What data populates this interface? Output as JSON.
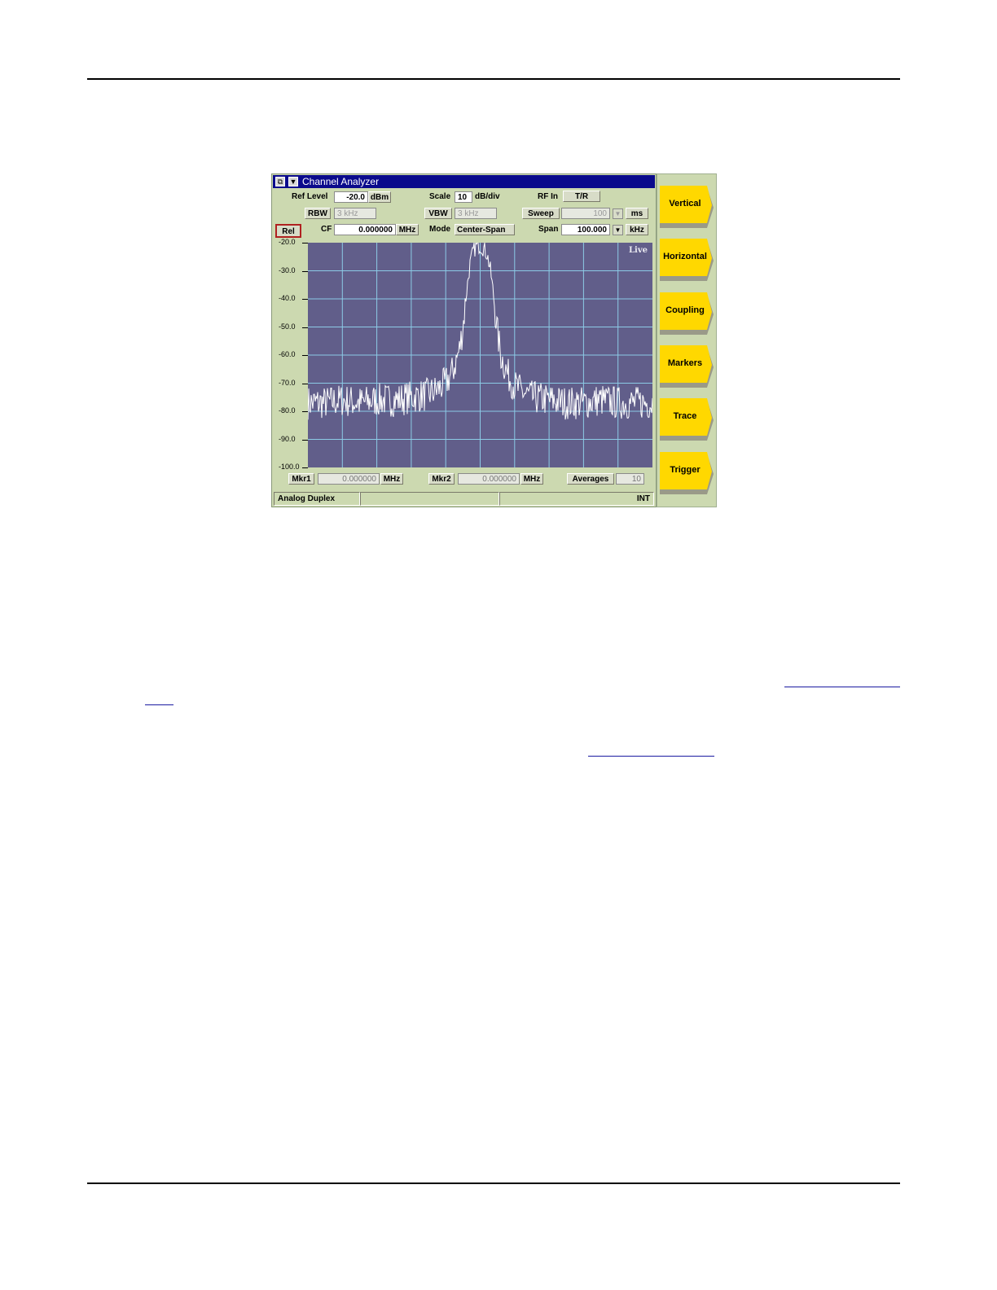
{
  "window": {
    "title": "Channel Analyzer",
    "icons": [
      "restore-icon",
      "dropdown-arrow-icon"
    ],
    "ref_level": {
      "label": "Ref Level",
      "value": "-20.0",
      "unit": "dBm"
    },
    "scale": {
      "label": "Scale",
      "value": "10",
      "unit": "dB/div"
    },
    "rf_in": {
      "label": "RF In",
      "value": "T/R"
    },
    "rbw": {
      "label": "RBW",
      "value": "3 kHz"
    },
    "vbw": {
      "label": "VBW",
      "value": "3 kHz"
    },
    "sweep": {
      "label": "Sweep",
      "value": "100",
      "unit": "ms"
    },
    "rel": {
      "label": "Rel"
    },
    "cf": {
      "label": "CF",
      "value": "0.000000",
      "unit": "MHz"
    },
    "mode": {
      "label": "Mode",
      "value": "Center-Span"
    },
    "span": {
      "label": "Span",
      "value": "100.000",
      "unit": "kHz"
    },
    "live_label": "Live",
    "mkr1": {
      "label": "Mkr1",
      "value": "0.000000",
      "unit": "MHz"
    },
    "mkr2": {
      "label": "Mkr2",
      "value": "0.000000",
      "unit": "MHz"
    },
    "averages": {
      "label": "Averages",
      "value": "10"
    },
    "status": {
      "left": "Analog Duplex",
      "middle": "",
      "right": "INT"
    }
  },
  "softkeys": [
    "Vertical",
    "Horizontal",
    "Coupling",
    "Markers",
    "Trace",
    "Trigger"
  ],
  "colors": {
    "title_bar": "#0a0a8c",
    "plot_bg": "#615e8a",
    "grid": "#8ccbe6",
    "trace": "#ffffff",
    "softkey": "#ffd800",
    "panel": "#ccd9b0",
    "rel_border": "#b02020"
  },
  "chart_data": {
    "type": "line",
    "ylim": [
      -100,
      -20
    ],
    "ytick_labels": [
      "-20.0",
      "-30.0",
      "-40.0",
      "-50.0",
      "-60.0",
      "-70.0",
      "-80.0",
      "-90.0",
      "-100.0"
    ],
    "grid": true,
    "x_divisions": 10,
    "xlim_khz_offset": [
      -50,
      50
    ],
    "series": [
      {
        "x": [
          -50,
          -45,
          -40,
          -35,
          -30,
          -25,
          -20,
          -15,
          -12,
          -10,
          -8,
          -6,
          -5,
          -4,
          -3,
          -2,
          -1,
          0,
          1,
          2,
          3,
          4,
          5,
          6,
          8,
          10,
          12,
          15,
          20,
          25,
          30,
          35,
          40,
          45,
          50
        ],
        "values": [
          -77,
          -77,
          -76,
          -77,
          -76,
          -76,
          -75,
          -74,
          -72,
          -70,
          -66,
          -58,
          -50,
          -38,
          -28,
          -23,
          -21,
          -21,
          -22,
          -24,
          -30,
          -40,
          -52,
          -60,
          -67,
          -71,
          -73,
          -75,
          -76,
          -77,
          -77,
          -76,
          -77,
          -77,
          -77
        ]
      }
    ]
  }
}
